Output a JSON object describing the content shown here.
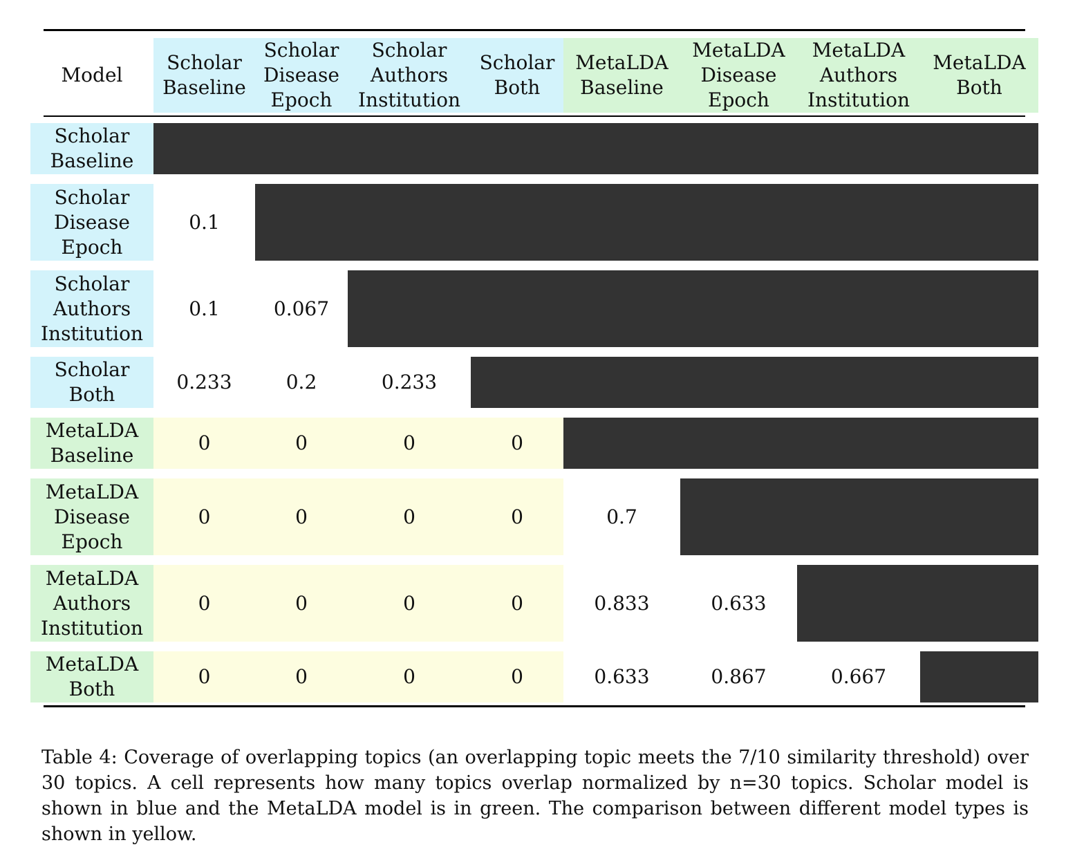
{
  "colors": {
    "scholar": "#d3f3fb",
    "metalda": "#d6f5d6",
    "cross": "#fdfde0",
    "masked": "#333333"
  },
  "table": {
    "corner_label": "Model",
    "columns": [
      {
        "label": "Scholar\nBaseline",
        "group": "scholar"
      },
      {
        "label": "Scholar\nDisease\nEpoch",
        "group": "scholar"
      },
      {
        "label": "Scholar\nAuthors\nInstitution",
        "group": "scholar"
      },
      {
        "label": "Scholar\nBoth",
        "group": "scholar"
      },
      {
        "label": "MetaLDA\nBaseline",
        "group": "metalda"
      },
      {
        "label": "MetaLDA\nDisease\nEpoch",
        "group": "metalda"
      },
      {
        "label": "MetaLDA\nAuthors\nInstitution",
        "group": "metalda"
      },
      {
        "label": "MetaLDA\nBoth",
        "group": "metalda"
      }
    ],
    "rows": [
      {
        "label": "Scholar\nBaseline",
        "group": "scholar",
        "values": []
      },
      {
        "label": "Scholar\nDisease\nEpoch",
        "group": "scholar",
        "values": [
          "0.1"
        ]
      },
      {
        "label": "Scholar\nAuthors\nInstitution",
        "group": "scholar",
        "values": [
          "0.1",
          "0.067"
        ]
      },
      {
        "label": "Scholar\nBoth",
        "group": "scholar",
        "values": [
          "0.233",
          "0.2",
          "0.233"
        ]
      },
      {
        "label": "MetaLDA\nBaseline",
        "group": "metalda",
        "values": [
          "0",
          "0",
          "0",
          "0"
        ]
      },
      {
        "label": "MetaLDA\nDisease\nEpoch",
        "group": "metalda",
        "values": [
          "0",
          "0",
          "0",
          "0",
          "0.7"
        ]
      },
      {
        "label": "MetaLDA\nAuthors\nInstitution",
        "group": "metalda",
        "values": [
          "0",
          "0",
          "0",
          "0",
          "0.833",
          "0.633"
        ]
      },
      {
        "label": "MetaLDA\nBoth",
        "group": "metalda",
        "values": [
          "0",
          "0",
          "0",
          "0",
          "0.633",
          "0.867",
          "0.667"
        ]
      }
    ]
  },
  "caption": "Table 4: Coverage of overlapping topics (an overlapping topic meets the 7/10 similarity threshold) over 30 topics. A cell represents how many topics overlap normalized by n=30 topics. Scholar model is shown in blue and the MetaLDA model is in green. The comparison between different model types is shown in yellow."
}
